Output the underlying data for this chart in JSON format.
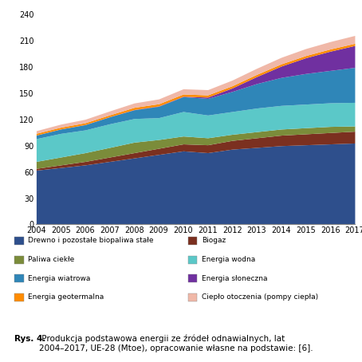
{
  "years": [
    2004,
    2005,
    2006,
    2007,
    2008,
    2009,
    2010,
    2011,
    2012,
    2013,
    2014,
    2015,
    2016,
    2017
  ],
  "series_order": [
    "Drewno i pozostałe biopaliwa stałe",
    "Biogaz",
    "Paliwa ciekłe",
    "Energia wodna",
    "Energia wiatrowa",
    "Energia słoneczna",
    "Energia geotermalna",
    "Ciepło otoczenia (pompy ciepła)"
  ],
  "series": {
    "Drewno i pozostałe biopaliwa stałe": [
      62,
      65,
      68,
      72,
      76,
      80,
      84,
      82,
      86,
      88,
      90,
      91,
      92,
      93
    ],
    "Biogaz": [
      2,
      3,
      4,
      5,
      6,
      7,
      8,
      9,
      10,
      11,
      12,
      12.5,
      13,
      13.5
    ],
    "Paliwa ciekłe": [
      8,
      9,
      10,
      11,
      12,
      10,
      9,
      8,
      7,
      7,
      7,
      7,
      7,
      6
    ],
    "Energia wodna": [
      26,
      27,
      26,
      27,
      27,
      25,
      28,
      26,
      26,
      27,
      27,
      27,
      27,
      27
    ],
    "Energia wiatrowa": [
      4,
      5,
      6,
      8,
      10,
      13,
      17,
      19,
      23,
      28,
      32,
      35,
      37,
      40
    ],
    "Energia słoneczna": [
      0.1,
      0.1,
      0.2,
      0.2,
      0.3,
      0.4,
      0.5,
      1.5,
      4,
      8,
      13,
      18,
      22,
      25
    ],
    "Energia geotermalna": [
      2,
      2,
      2,
      2,
      2.5,
      2.5,
      2.5,
      2.5,
      2.5,
      2.5,
      2.5,
      2.5,
      2.5,
      2.5
    ],
    "Ciepło otoczenia (pompy ciepła)": [
      3,
      3.5,
      4,
      4.5,
      5,
      5.5,
      6,
      6,
      6.5,
      7,
      7.5,
      8,
      8.5,
      9
    ]
  },
  "colors": {
    "Drewno i pozostałe biopaliwa stałe": "#2E4F8C",
    "Biogaz": "#7B3020",
    "Paliwa ciekłe": "#7B8C3A",
    "Energia wodna": "#5BC8C8",
    "Energia wiatrowa": "#2F86B8",
    "Energia słoneczna": "#7030A0",
    "Energia geotermalna": "#FF8C00",
    "Ciepło otoczenia (pompy ciepła)": "#F0B8A8"
  },
  "legend_left": [
    "Drewno i pozostałe biopaliwa stałe",
    "Paliwa ciekłe",
    "Energia wiatrowa",
    "Energia geotermalna"
  ],
  "legend_right": [
    "Biogaz",
    "Energia wodna",
    "Energia słoneczna",
    "Ciepło otoczenia (pompy ciepła)"
  ],
  "yticks": [
    0,
    30,
    60,
    90,
    120,
    150,
    180,
    210,
    240
  ],
  "figsize": [
    4.54,
    4.54
  ],
  "dpi": 100,
  "caption_bold": "Rys. 4.",
  "caption_normal": " Produkcja podstawowa energii ze źródeł odnawialnych, lat\n2004–2017, UE-28 (Mtoe), opracowanie własne na podstawie: [6]."
}
